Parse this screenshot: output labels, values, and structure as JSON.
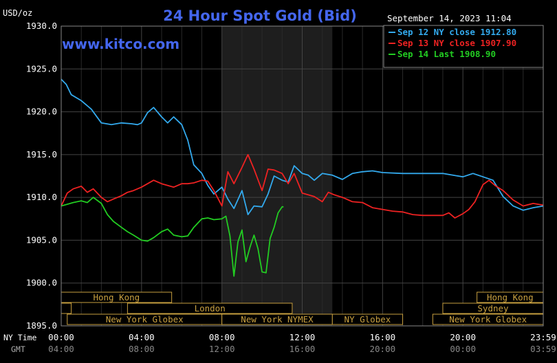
{
  "chart_data": {
    "type": "line",
    "title": "24 Hour Spot Gold (Bid)",
    "watermark": "www.kitco.com",
    "timestamp": "September 14, 2023 11:04",
    "ylabel": "USD/oz",
    "ylim": [
      1895,
      1930
    ],
    "y_ticks": [
      "1930.0",
      "1925.0",
      "1920.0",
      "1915.0",
      "1910.0",
      "1905.0",
      "1900.0",
      "1895.0"
    ],
    "y_tick_values": [
      1930,
      1925,
      1920,
      1915,
      1910,
      1905,
      1900,
      1895
    ],
    "xlim": [
      0,
      24
    ],
    "x_tick_hours": [
      0,
      4,
      8,
      12,
      16,
      20,
      24
    ],
    "x_row_label_ny": "NY Time",
    "x_row_label_gmt": "GMT",
    "x_ticks_ny": [
      "00:00",
      "04:00",
      "08:00",
      "12:00",
      "16:00",
      "20:00",
      "23:59"
    ],
    "x_ticks_gmt": [
      "04:00",
      "08:00",
      "12:00",
      "16:00",
      "20:00",
      "00:00",
      "03:59"
    ],
    "grid": true,
    "legend_position": "top-right",
    "shaded_session": [
      8.0,
      13.5
    ],
    "series": [
      {
        "name": "Sep 12 NY close 1912.80",
        "color": "#33aaee",
        "x": [
          0,
          0.25,
          0.5,
          1,
          1.5,
          2,
          2.5,
          3,
          3.5,
          3.8,
          4,
          4.3,
          4.6,
          5,
          5.3,
          5.6,
          6,
          6.3,
          6.6,
          7,
          7.3,
          7.6,
          8,
          8.3,
          8.6,
          9,
          9.3,
          9.6,
          10,
          10.3,
          10.6,
          11,
          11.3,
          11.6,
          12,
          12.3,
          12.6,
          13,
          13.5,
          14,
          14.5,
          15,
          15.5,
          16,
          17,
          18,
          19,
          19.5,
          20,
          20.5,
          21,
          21.5,
          22,
          22.5,
          23,
          23.5,
          24
        ],
        "y": [
          1923.8,
          1923.2,
          1922.0,
          1921.3,
          1920.3,
          1918.7,
          1918.5,
          1918.7,
          1918.6,
          1918.5,
          1918.7,
          1919.9,
          1920.5,
          1919.4,
          1918.7,
          1919.4,
          1918.5,
          1916.7,
          1913.8,
          1912.8,
          1911.4,
          1910.4,
          1911.2,
          1909.8,
          1908.7,
          1910.8,
          1908.0,
          1909.0,
          1908.9,
          1910.4,
          1912.5,
          1912.0,
          1911.8,
          1913.7,
          1912.8,
          1912.6,
          1912.0,
          1912.8,
          1912.6,
          1912.1,
          1912.8,
          1913.0,
          1913.1,
          1912.9,
          1912.8,
          1912.8,
          1912.8,
          1912.6,
          1912.4,
          1912.8,
          1912.4,
          1912.0,
          1910.1,
          1909.0,
          1908.5,
          1908.8,
          1909.0
        ]
      },
      {
        "name": "Sep 13 NY close 1907.90",
        "color": "#ee2222",
        "x": [
          0,
          0.3,
          0.6,
          1,
          1.3,
          1.6,
          2,
          2.3,
          2.6,
          3,
          3.3,
          3.6,
          4,
          4.3,
          4.6,
          5,
          5.3,
          5.6,
          6,
          6.3,
          6.6,
          7,
          7.3,
          7.6,
          8,
          8.3,
          8.6,
          9,
          9.3,
          9.6,
          10,
          10.3,
          10.6,
          11,
          11.3,
          11.6,
          12,
          12.3,
          12.6,
          13,
          13.3,
          13.6,
          14,
          14.5,
          15,
          15.5,
          16,
          16.5,
          17,
          17.5,
          18,
          18.5,
          19,
          19.3,
          19.6,
          20,
          20.3,
          20.6,
          21,
          21.3,
          21.6,
          22,
          22.5,
          23,
          23.5,
          24
        ],
        "y": [
          1909.0,
          1910.5,
          1911.0,
          1911.3,
          1910.6,
          1911.0,
          1910.0,
          1909.5,
          1909.8,
          1910.2,
          1910.6,
          1910.8,
          1911.2,
          1911.6,
          1912.0,
          1911.6,
          1911.4,
          1911.2,
          1911.6,
          1911.6,
          1911.7,
          1912.0,
          1911.9,
          1910.8,
          1909.0,
          1913.0,
          1911.6,
          1913.5,
          1915.0,
          1913.3,
          1910.8,
          1913.3,
          1913.2,
          1912.8,
          1911.6,
          1912.8,
          1910.5,
          1910.3,
          1910.1,
          1909.5,
          1910.6,
          1910.3,
          1910.0,
          1909.5,
          1909.4,
          1908.8,
          1908.6,
          1908.4,
          1908.3,
          1908.0,
          1907.9,
          1907.9,
          1907.9,
          1908.2,
          1907.6,
          1908.1,
          1908.6,
          1909.5,
          1911.5,
          1912.0,
          1911.4,
          1910.8,
          1909.7,
          1909.0,
          1909.3,
          1909.1
        ]
      },
      {
        "name": "Sep 14 Last 1908.90",
        "color": "#22cc22",
        "x": [
          0,
          0.3,
          0.6,
          1,
          1.3,
          1.6,
          2,
          2.3,
          2.6,
          3,
          3.3,
          3.6,
          4,
          4.3,
          4.6,
          5,
          5.3,
          5.6,
          6,
          6.3,
          6.6,
          7,
          7.3,
          7.6,
          8,
          8.2,
          8.4,
          8.6,
          8.8,
          9,
          9.2,
          9.4,
          9.6,
          9.8,
          10,
          10.2,
          10.4,
          10.6,
          10.8,
          11,
          11.07
        ],
        "y": [
          1909.0,
          1909.2,
          1909.4,
          1909.6,
          1909.4,
          1910.0,
          1909.3,
          1908.0,
          1907.2,
          1906.5,
          1906.0,
          1905.6,
          1905.0,
          1904.9,
          1905.3,
          1906.0,
          1906.3,
          1905.6,
          1905.4,
          1905.5,
          1906.5,
          1907.5,
          1907.6,
          1907.4,
          1907.5,
          1907.8,
          1905.5,
          1900.8,
          1904.8,
          1906.2,
          1902.5,
          1904.2,
          1905.6,
          1904.0,
          1901.3,
          1901.2,
          1905.2,
          1906.5,
          1908.2,
          1908.9,
          1908.9
        ]
      }
    ],
    "sessions": [
      {
        "label": "Hong Kong",
        "start": 0.0,
        "end": 5.5,
        "row": 0
      },
      {
        "label": "London",
        "start": 3.3,
        "end": 11.5,
        "row": 1
      },
      {
        "label": "",
        "start": 0.0,
        "end": 0.5,
        "row": 1
      },
      {
        "label": "New York Globex",
        "start": 0.3,
        "end": 8.0,
        "row": 2
      },
      {
        "label": "New York NYMEX",
        "start": 8.0,
        "end": 13.5,
        "row": 2
      },
      {
        "label": "NY Globex",
        "start": 13.5,
        "end": 17.0,
        "row": 2
      },
      {
        "label": "Hong Kong",
        "start": 20.7,
        "end": 24.0,
        "row": 0
      },
      {
        "label": "Sydney",
        "start": 19.0,
        "end": 24.0,
        "row": 1
      },
      {
        "label": "New York Globex",
        "start": 18.5,
        "end": 24.0,
        "row": 2
      }
    ]
  }
}
